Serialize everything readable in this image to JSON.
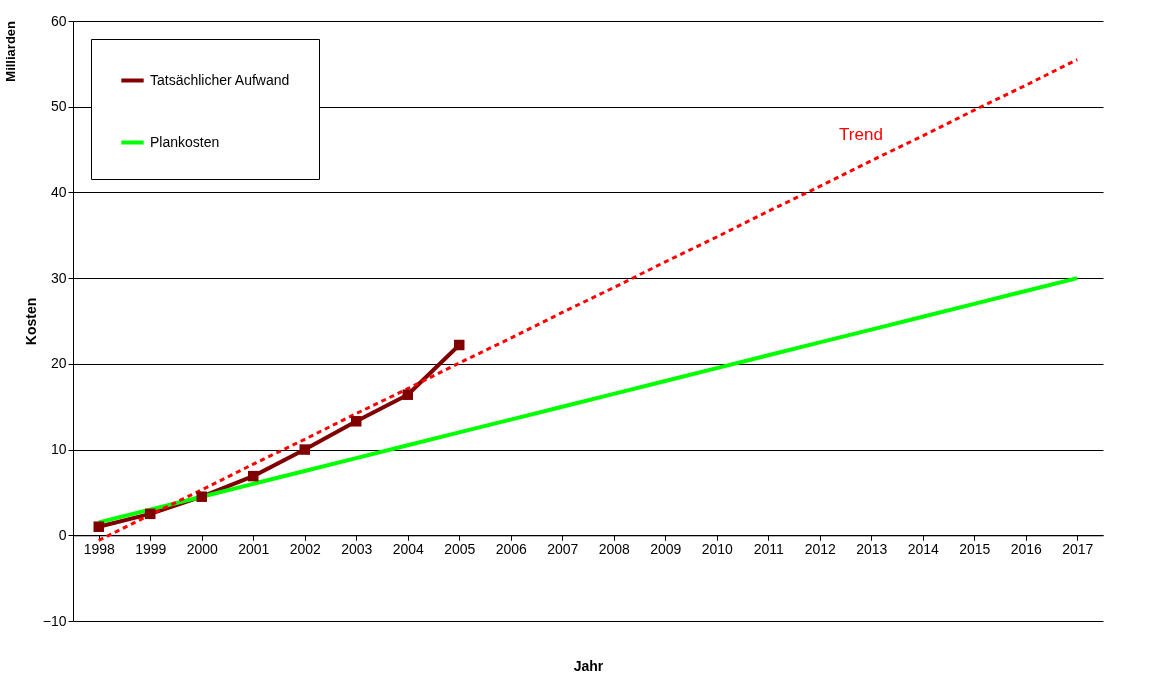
{
  "chart_data": {
    "type": "line",
    "xlabel": "Jahr",
    "ylabel": "Kosten",
    "categories": [
      "1998",
      "1999",
      "2000",
      "2001",
      "2002",
      "2003",
      "2004",
      "2005",
      "2006",
      "2007",
      "2008",
      "2009",
      "2010",
      "2011",
      "2012",
      "2013",
      "2014",
      "2015",
      "2016",
      "2017"
    ],
    "series": [
      {
        "name": "Tatsächlicher Aufwand",
        "color": "#800000",
        "marker": "square",
        "values": [
          1.0,
          2.5,
          4.5,
          6.9,
          10.0,
          13.3,
          16.4,
          22.2,
          null,
          null,
          null,
          null,
          null,
          null,
          null,
          null,
          null,
          null,
          null,
          null
        ]
      },
      {
        "name": "Plankosten",
        "color": "#00ff00",
        "marker": "none",
        "values": [
          1.5,
          3.0,
          4.5,
          6.0,
          7.5,
          9.0,
          10.5,
          12.0,
          13.5,
          15.0,
          16.5,
          18.0,
          19.5,
          21.0,
          22.5,
          24.0,
          25.5,
          27.0,
          28.5,
          30.0
        ]
      },
      {
        "type": "line",
        "color": "#ff0000",
        "line_style": "dashed",
        "marker": "none",
        "values": [
          -0.6,
          2.4,
          5.3,
          8.3,
          11.2,
          14.2,
          17.1,
          20.1,
          23.0,
          26.0,
          28.9,
          31.9,
          34.8,
          37.8,
          40.7,
          43.7,
          46.6,
          49.6,
          52.5,
          55.5
        ]
      }
    ],
    "ylim": [
      -10,
      60
    ],
    "yticks": [
      -10,
      0,
      10,
      20,
      30,
      40,
      50,
      60
    ],
    "grid": "y",
    "legend": "top left",
    "line_style": "solid",
    "annotations": [
      "Milliarden",
      "Trend"
    ]
  }
}
